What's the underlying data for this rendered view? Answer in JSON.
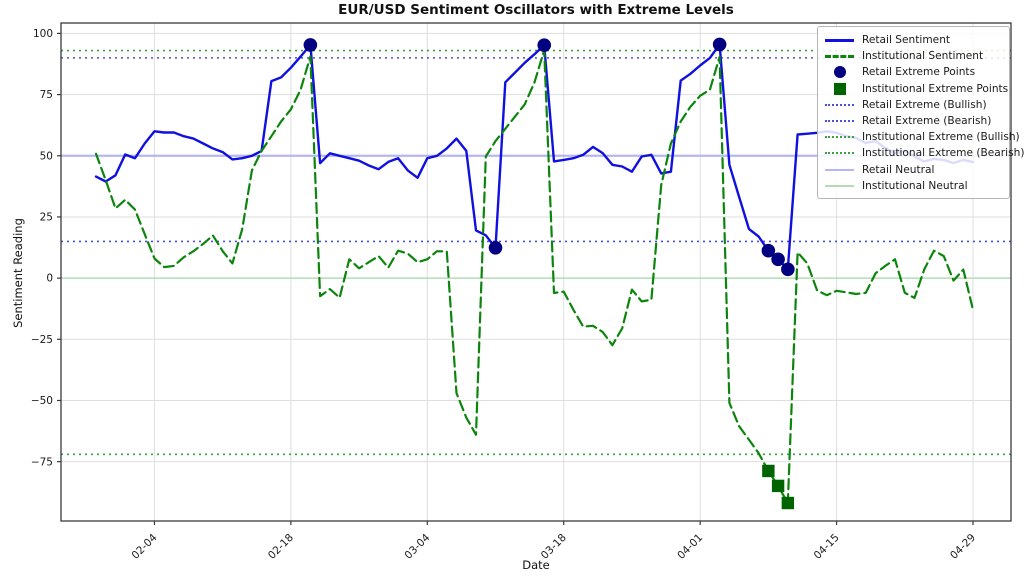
{
  "title": "EUR/USD Sentiment Oscillators with Extreme Levels",
  "axes": {
    "x_label": "Date",
    "y_label": "Sentiment Reading"
  },
  "legend": {
    "items": [
      {
        "label": "Retail Sentiment",
        "swatch": "solid",
        "color": "#1010e0",
        "thick": 3
      },
      {
        "label": "Institutional Sentiment",
        "swatch": "dashed",
        "color": "#0c850c",
        "thick": 3
      },
      {
        "label": "Retail Extreme Points",
        "swatch": "circle",
        "color": "#000080",
        "thick": 0
      },
      {
        "label": "Institutional Extreme Points",
        "swatch": "square",
        "color": "#006400",
        "thick": 0
      },
      {
        "label": "Retail Extreme (Bullish)",
        "swatch": "dotted",
        "color": "#4d4ddb",
        "thick": 2
      },
      {
        "label": "Retail Extreme (Bearish)",
        "swatch": "dotted",
        "color": "#4d4ddb",
        "thick": 2
      },
      {
        "label": "Institutional Extreme (Bullish)",
        "swatch": "dotted",
        "color": "#3da23d",
        "thick": 2
      },
      {
        "label": "Institutional Extreme (Bearish)",
        "swatch": "dotted",
        "color": "#3da23d",
        "thick": 2
      },
      {
        "label": "Retail Neutral",
        "swatch": "solid",
        "color": "#b6b6f2",
        "thick": 2
      },
      {
        "label": "Institutional Neutral",
        "swatch": "solid",
        "color": "#b4dcb4",
        "thick": 2
      }
    ]
  },
  "chart_data": {
    "type": "line",
    "title": "EUR/USD Sentiment Oscillators with Extreme Levels",
    "xlabel": "Date",
    "ylabel": "Sentiment Reading",
    "grid": true,
    "legend_position": "upper right",
    "ylim": [
      -99.25,
      104.25
    ],
    "y_ticks": [
      100,
      75,
      50,
      25,
      0,
      -25,
      -50,
      -75
    ],
    "x_ticks": [
      {
        "label": "02-04",
        "day_index": 6
      },
      {
        "label": "02-18",
        "day_index": 20
      },
      {
        "label": "03-04",
        "day_index": 34
      },
      {
        "label": "03-18",
        "day_index": 48
      },
      {
        "label": "04-01",
        "day_index": 62
      },
      {
        "label": "04-15",
        "day_index": 76
      },
      {
        "label": "04-29",
        "day_index": 90
      }
    ],
    "dates": [
      "01-29",
      "01-30",
      "01-31",
      "02-01",
      "02-02",
      "02-03",
      "02-04",
      "02-05",
      "02-06",
      "02-07",
      "02-08",
      "02-09",
      "02-10",
      "02-11",
      "02-12",
      "02-13",
      "02-14",
      "02-15",
      "02-16",
      "02-17",
      "02-18",
      "02-19",
      "02-20",
      "02-21",
      "02-22",
      "02-23",
      "02-24",
      "02-25",
      "02-26",
      "02-27",
      "02-28",
      "03-01",
      "03-02",
      "03-03",
      "03-04",
      "03-05",
      "03-06",
      "03-07",
      "03-08",
      "03-09",
      "03-10",
      "03-11",
      "03-12",
      "03-13",
      "03-14",
      "03-15",
      "03-16",
      "03-17",
      "03-18",
      "03-19",
      "03-20",
      "03-21",
      "03-22",
      "03-23",
      "03-24",
      "03-25",
      "03-26",
      "03-27",
      "03-28",
      "03-29",
      "03-30",
      "03-31",
      "04-01",
      "04-02",
      "04-03",
      "04-04",
      "04-05",
      "04-06",
      "04-07",
      "04-08",
      "04-09",
      "04-10",
      "04-11",
      "04-12",
      "04-13",
      "04-14",
      "04-15",
      "04-16",
      "04-17",
      "04-18",
      "04-19",
      "04-20",
      "04-21",
      "04-22",
      "04-23",
      "04-24",
      "04-25",
      "04-26",
      "04-27",
      "04-28",
      "04-29"
    ],
    "series": [
      {
        "name": "Retail Sentiment",
        "style": "solid",
        "color": "#1010e0",
        "width": 2.4,
        "values": [
          41.5,
          39.5,
          42,
          50.5,
          49,
          55,
          60,
          59.5,
          59.5,
          58,
          57,
          55,
          53,
          51.5,
          48.5,
          49,
          50,
          52,
          80.5,
          82,
          86,
          90.5,
          95.3,
          47,
          51,
          50,
          49,
          48,
          46,
          44.5,
          47.5,
          49,
          44,
          41,
          49,
          50,
          53,
          57,
          52,
          19.5,
          17.5,
          12.4,
          80,
          84,
          88,
          91.5,
          95.2,
          47.7,
          48.3,
          49,
          50.4,
          53.6,
          51.1,
          46.3,
          45.6,
          43.5,
          49.7,
          50.4,
          42.8,
          43.5,
          80.7,
          83.5,
          86.9,
          90,
          95.5,
          46.3,
          33.2,
          20.1,
          17,
          11.2,
          7.7,
          3.6,
          58.7,
          59,
          59.4,
          60,
          59.4,
          58,
          57.3,
          55.2,
          56,
          53.2,
          51.1,
          52,
          49.7,
          47.7,
          48.7,
          48.3,
          47,
          48.3,
          47.4
        ]
      },
      {
        "name": "Institutional Sentiment",
        "style": "dashed",
        "color": "#0c850c",
        "width": 2.2,
        "values": [
          50.8,
          40,
          28.5,
          32,
          28,
          18,
          8,
          4.5,
          5,
          8.5,
          11,
          14,
          17.4,
          11,
          6,
          20,
          44,
          52,
          58,
          64,
          69,
          77,
          90.6,
          -7.4,
          -4.5,
          -8,
          7.7,
          4,
          6.5,
          9,
          4.3,
          11.2,
          10,
          6.5,
          7.7,
          11,
          10.9,
          -47,
          -57,
          -64,
          49.7,
          56,
          61,
          66,
          71,
          80,
          93.1,
          -6.1,
          -5.5,
          -13,
          -19.8,
          -19.5,
          -22,
          -27.4,
          -20.5,
          -4.7,
          -9.5,
          -8.8,
          38,
          55,
          64,
          70,
          74.5,
          77,
          90.4,
          -51,
          -60.5,
          -66,
          -71.5,
          -78.8,
          -84.9,
          -91.9,
          10.5,
          6,
          -5,
          -7,
          -5.2,
          -5.8,
          -6.5,
          -6,
          2,
          5,
          7.7,
          -6,
          -8.1,
          3.6,
          11.2,
          9,
          -1,
          3.5,
          -13
        ]
      }
    ],
    "markers": [
      {
        "name": "Retail Extreme Points",
        "shape": "circle",
        "color": "#000080",
        "points": [
          {
            "date": "02-20",
            "value": 95.3
          },
          {
            "date": "03-11",
            "value": 12.4
          },
          {
            "date": "03-16",
            "value": 95.2
          },
          {
            "date": "04-03",
            "value": 95.5
          },
          {
            "date": "04-08",
            "value": 11.2
          },
          {
            "date": "04-09",
            "value": 7.7
          },
          {
            "date": "04-10",
            "value": 3.6
          }
        ]
      },
      {
        "name": "Institutional Extreme Points",
        "shape": "square",
        "color": "#006400",
        "points": [
          {
            "date": "04-08",
            "value": -78.8
          },
          {
            "date": "04-09",
            "value": -84.9
          },
          {
            "date": "04-10",
            "value": -91.9
          }
        ]
      }
    ],
    "ref_lines": [
      {
        "name": "Institutional Extreme (Bullish)",
        "value": 93,
        "style": "dotted",
        "color": "#3da23d",
        "width": 1.6
      },
      {
        "name": "Retail Extreme (Bullish)",
        "value": 90,
        "style": "dotted",
        "color": "#4d4ddb",
        "width": 1.6
      },
      {
        "name": "Retail Neutral",
        "value": 50,
        "style": "solid",
        "color": "#b6b6f2",
        "width": 2.2
      },
      {
        "name": "Retail Extreme (Bearish)",
        "value": 15,
        "style": "dotted",
        "color": "#4d4ddb",
        "width": 1.6
      },
      {
        "name": "Institutional Neutral",
        "value": 0,
        "style": "solid",
        "color": "#b4dcb4",
        "width": 1.6
      },
      {
        "name": "Institutional Extreme (Bearish)",
        "value": -72,
        "style": "dotted",
        "color": "#3da23d",
        "width": 1.6
      }
    ]
  }
}
